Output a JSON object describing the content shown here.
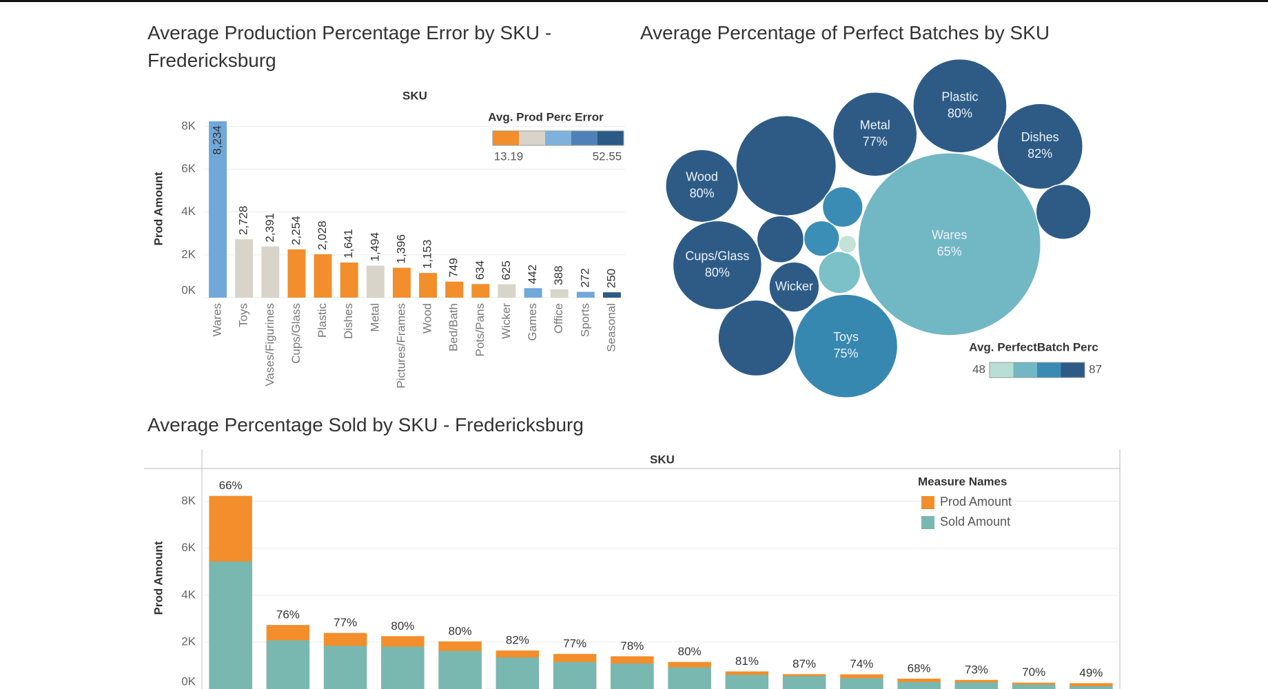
{
  "chart_data": [
    {
      "type": "bar",
      "title": "Average Production Percentage Error by SKU - Fredericksburg",
      "x_header": "SKU",
      "y_label": "Prod Amount",
      "categories": [
        "Wares",
        "Toys",
        "Vases/Figurines",
        "Cups/Glass",
        "Plastic",
        "Dishes",
        "Metal",
        "Pictures/Frames",
        "Wood",
        "Bed/Bath",
        "Pots/Pans",
        "Wicker",
        "Games",
        "Office",
        "Sports",
        "Seasonal"
      ],
      "values": [
        8234,
        2728,
        2391,
        2254,
        2028,
        1641,
        1494,
        1396,
        1153,
        749,
        634,
        625,
        442,
        388,
        272,
        250
      ],
      "value_labels": [
        "8,234",
        "2,728",
        "2,391",
        "2,254",
        "2,028",
        "1,641",
        "1,494",
        "1,396",
        "1,153",
        "749",
        "634",
        "625",
        "442",
        "388",
        "272",
        "250"
      ],
      "colors": [
        "#6fa8d9",
        "#d8d4c9",
        "#d8d4c9",
        "#f28e2b",
        "#f28e2b",
        "#f28e2b",
        "#d8d4c9",
        "#f28e2b",
        "#f28e2b",
        "#f28e2b",
        "#f28e2b",
        "#d8d4c9",
        "#6fa8d9",
        "#d8d4c9",
        "#6fa8d9",
        "#2c5985"
      ],
      "ylim": [
        0,
        8300
      ],
      "yticks": [
        {
          "value": 0,
          "label": "0K"
        },
        {
          "value": 2000,
          "label": "2K"
        },
        {
          "value": 4000,
          "label": "4K"
        },
        {
          "value": 6000,
          "label": "6K"
        },
        {
          "value": 8000,
          "label": "8K"
        }
      ],
      "grid": true,
      "colorscale": {
        "title": "Avg. Prod Perc Error",
        "min": 13.19,
        "max": 52.55,
        "colors": [
          "#f28e2b",
          "#d8d4c9",
          "#7fb2db",
          "#4e81b7",
          "#2c5985"
        ]
      }
    },
    {
      "type": "bubble",
      "title": "Average Percentage of Perfect Batches by SKU",
      "categories": [
        "Plastic",
        "Metal",
        "Dishes",
        "Wood",
        null,
        "Wares",
        null,
        "Cups/Glass",
        null,
        "Wicker",
        null,
        null,
        null,
        null,
        null,
        "Toys"
      ],
      "values": [
        80,
        77,
        82,
        80,
        83,
        65,
        82,
        80,
        84,
        86,
        72,
        71,
        62,
        48,
        83,
        75
      ],
      "value_labels": [
        "80%",
        "77%",
        "82%",
        "80%",
        null,
        "65%",
        null,
        "80%",
        null,
        null,
        null,
        null,
        null,
        null,
        null,
        "75%"
      ],
      "sizes": [
        2170,
        1745,
        1811,
        1306,
        2480,
        8234,
        745,
        1948,
        543,
        620,
        403,
        313,
        437,
        78,
        1423,
        2641
      ],
      "colors": [
        "#2d5b86",
        "#2d5b86",
        "#2d5b86",
        "#2d5b86",
        "#2d5b86",
        "#72b7c4",
        "#2d5b86",
        "#2d5b86",
        "#2d5b86",
        "#2d5b86",
        "#3a8cb5",
        "#3b8fb7",
        "#7cc0c8",
        "#c4e3d8",
        "#2d5b86",
        "#3688b0"
      ],
      "colorscale": {
        "title": "Avg. PerfectBatch Perc",
        "min": 48,
        "max": 87,
        "colors": [
          "#b9ded3",
          "#72b7c4",
          "#3a8bb4",
          "#2d5b86"
        ]
      }
    },
    {
      "type": "bar",
      "title": "Average Percentage Sold by SKU - Fredericksburg",
      "x_header": "SKU",
      "y_label": "Prod Amount",
      "legend_title": "Measure Names",
      "series": [
        {
          "name": "Prod Amount",
          "color": "#f28e2b",
          "values": [
            8234,
            2728,
            2391,
            2254,
            2028,
            1641,
            1494,
            1396,
            1153,
            749,
            634,
            625,
            442,
            388,
            272,
            250
          ]
        },
        {
          "name": "Sold Amount",
          "color": "#79b7b1",
          "values": [
            5434,
            2073,
            1841,
            1803,
            1622,
            1346,
            1150,
            1089,
            922,
            607,
            552,
            463,
            301,
            283,
            190,
            123
          ]
        }
      ],
      "annotations": [
        "66%",
        "76%",
        "77%",
        "80%",
        "80%",
        "82%",
        "77%",
        "78%",
        "80%",
        "81%",
        "87%",
        "74%",
        "68%",
        "73%",
        "70%",
        "49%"
      ],
      "ylim": [
        0,
        9400
      ],
      "yticks": [
        {
          "value": 0,
          "label": "0K"
        },
        {
          "value": 2000,
          "label": "2K"
        },
        {
          "value": 4000,
          "label": "4K"
        },
        {
          "value": 6000,
          "label": "6K"
        },
        {
          "value": 8000,
          "label": "8K"
        }
      ],
      "grid": true
    }
  ]
}
